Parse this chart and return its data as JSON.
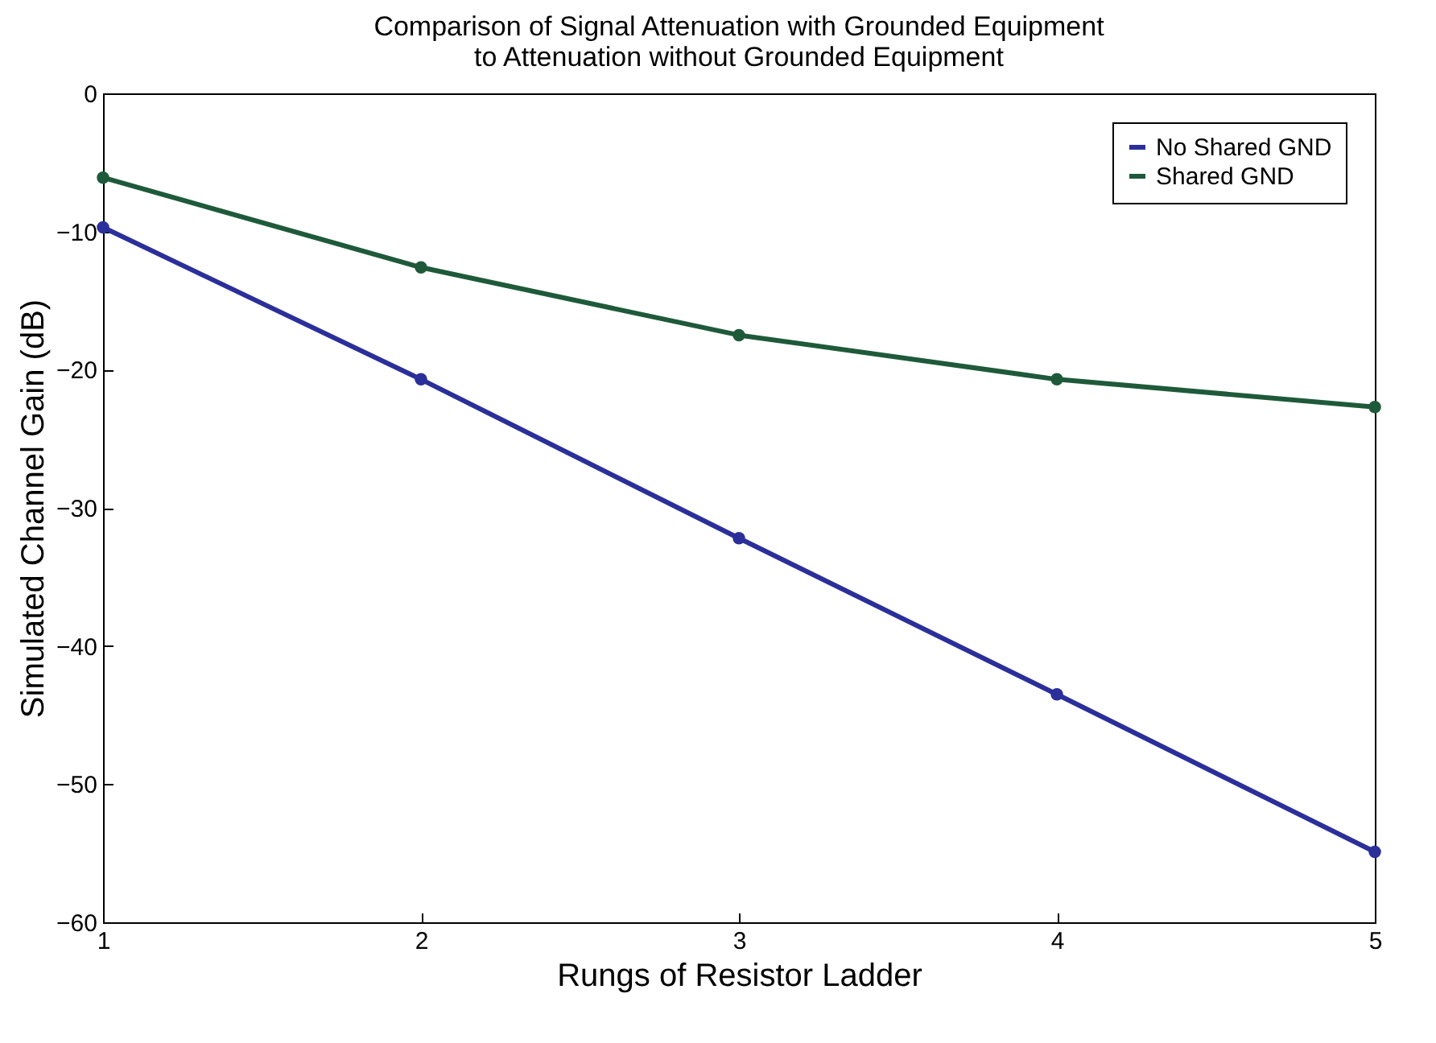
{
  "chart_data": {
    "type": "line",
    "title": "Comparison of Signal Attenuation with Grounded Equipment\nto Attenuation without Grounded Equipment",
    "xlabel": "Rungs of Resistor Ladder",
    "ylabel": "Simulated Channel Gain (dB)",
    "x": [
      1,
      2,
      3,
      4,
      5
    ],
    "series": [
      {
        "name": "No Shared GND",
        "color": "#2b2f9a",
        "values": [
          -9.7,
          -20.7,
          -32.2,
          -43.5,
          -54.9
        ]
      },
      {
        "name": "Shared GND",
        "color": "#1e5a3a",
        "values": [
          -6.1,
          -12.6,
          -17.5,
          -20.7,
          -22.7
        ]
      }
    ],
    "xlim": [
      1,
      5
    ],
    "xticks": [
      1,
      2,
      3,
      4,
      5
    ],
    "ylim": [
      -60,
      0
    ],
    "yticks": [
      -60,
      -50,
      -40,
      -30,
      -20,
      -10,
      0
    ],
    "legend": "top right",
    "marker": "circle",
    "line_style": "solid",
    "grid": false
  }
}
